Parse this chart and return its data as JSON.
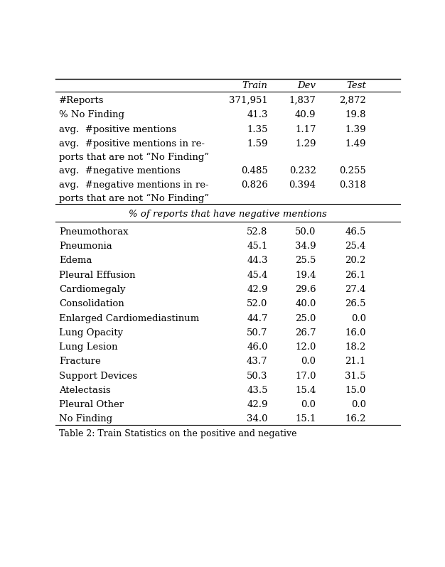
{
  "header_row": [
    "Train",
    "Dev",
    "Test"
  ],
  "top_rows": [
    {
      "label": "#Reports",
      "train": "371,951",
      "dev": "1,837",
      "test": "2,872",
      "multiline": false
    },
    {
      "label": "% No Finding",
      "train": "41.3",
      "dev": "40.9",
      "test": "19.8",
      "multiline": false
    },
    {
      "label": "avg.  #positive mentions",
      "train": "1.35",
      "dev": "1.17",
      "test": "1.39",
      "multiline": false
    },
    {
      "label": "avg.  #positive mentions in re-\nports that are not “No Finding”",
      "train": "1.59",
      "dev": "1.29",
      "test": "1.49",
      "multiline": true
    },
    {
      "label": "avg.  #negative mentions",
      "train": "0.485",
      "dev": "0.232",
      "test": "0.255",
      "multiline": false
    },
    {
      "label": "avg.  #negative mentions in re-\nports that are not “No Finding”",
      "train": "0.826",
      "dev": "0.394",
      "test": "0.318",
      "multiline": true
    }
  ],
  "section_header": "% of reports that have negative mentions",
  "bottom_rows": [
    {
      "label": "Pneumothorax",
      "train": "52.8",
      "dev": "50.0",
      "test": "46.5"
    },
    {
      "label": "Pneumonia",
      "train": "45.1",
      "dev": "34.9",
      "test": "25.4"
    },
    {
      "label": "Edema",
      "train": "44.3",
      "dev": "25.5",
      "test": "20.2"
    },
    {
      "label": "Pleural Effusion",
      "train": "45.4",
      "dev": "19.4",
      "test": "26.1"
    },
    {
      "label": "Cardiomegaly",
      "train": "42.9",
      "dev": "29.6",
      "test": "27.4"
    },
    {
      "label": "Consolidation",
      "train": "52.0",
      "dev": "40.0",
      "test": "26.5"
    },
    {
      "label": "Enlarged Cardiomediastinum",
      "train": "44.7",
      "dev": "25.0",
      "test": "0.0"
    },
    {
      "label": "Lung Opacity",
      "train": "50.7",
      "dev": "26.7",
      "test": "16.0"
    },
    {
      "label": "Lung Lesion",
      "train": "46.0",
      "dev": "12.0",
      "test": "18.2"
    },
    {
      "label": "Fracture",
      "train": "43.7",
      "dev": "0.0",
      "test": "21.1"
    },
    {
      "label": "Support Devices",
      "train": "50.3",
      "dev": "17.0",
      "test": "31.5"
    },
    {
      "label": "Atelectasis",
      "train": "43.5",
      "dev": "15.4",
      "test": "15.0"
    },
    {
      "label": "Pleural Other",
      "train": "42.9",
      "dev": "0.0",
      "test": "0.0"
    },
    {
      "label": "No Finding",
      "train": "34.0",
      "dev": "15.1",
      "test": "16.2"
    }
  ],
  "caption": "Table 2: Train Statistics on the positive and negative",
  "font_size": 9.5,
  "font_family": "serif"
}
